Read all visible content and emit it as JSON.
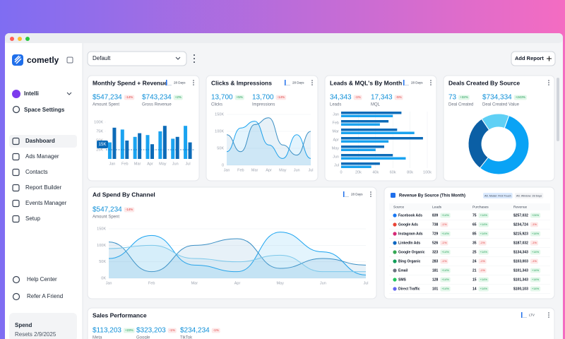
{
  "sidebar": {
    "brand": "cometly",
    "workspace": "Intelli",
    "space_settings": "Space Settings",
    "nav": [
      "Dashboard",
      "Ads Manager",
      "Contacts",
      "Report Builder",
      "Events Manager",
      "Setup"
    ],
    "footer_links": [
      "Help Center",
      "Refer A Friend"
    ],
    "plan": {
      "title": "Spend",
      "resets": "Resets 2/9/2025"
    }
  },
  "toolbar": {
    "dashboard_select": "Default",
    "add_report": "Add Report"
  },
  "monthly": {
    "title": "Monthly Spend + Revenue",
    "badge": "28 Days",
    "metrics": [
      {
        "value": "$547,234",
        "change": "-14%",
        "label": "Amount Spent"
      },
      {
        "value": "$743,234",
        "change": "+2%",
        "label": "Gross Revenue"
      }
    ],
    "chart": {
      "categories": [
        "Jan",
        "Feb",
        "Mar",
        "Apr",
        "May",
        "Jun",
        "Jul"
      ],
      "ylim": [
        0,
        100000
      ],
      "yticks": [
        {
          "value": 100000,
          "label": "100K"
        },
        {
          "value": 75000,
          "label": "75K"
        },
        {
          "value": 50000,
          "label": "50K"
        },
        {
          "value": 25000,
          "label": "25K"
        }
      ],
      "annotation": "15K",
      "series": [
        {
          "color": "#1aa3f0",
          "values": [
            45000,
            80000,
            60000,
            65000,
            75000,
            55000,
            90000
          ]
        },
        {
          "color": "#0d6bb8",
          "values": [
            85000,
            50000,
            70000,
            40000,
            90000,
            60000,
            45000
          ]
        }
      ]
    }
  },
  "clicks": {
    "title": "Clicks & Impressions",
    "badge": "28 Days",
    "metrics": [
      {
        "value": "13,700",
        "change": "+5%",
        "label": "Clicks"
      },
      {
        "value": "13,700",
        "change": "-14%",
        "label": "Impressions"
      }
    ],
    "chart": {
      "categories": [
        "Jan",
        "Feb",
        "Mar",
        "Apr",
        "May",
        "Jun",
        "Jul"
      ],
      "ylim": [
        0,
        150000
      ],
      "yticks": [
        {
          "value": 150000,
          "label": "150K"
        },
        {
          "value": 100000,
          "label": "100K"
        },
        {
          "value": 50000,
          "label": "50K"
        },
        0
      ],
      "series": [
        {
          "color": "#1aa3f0",
          "values": [
            40000,
            110000,
            130000,
            60000,
            20000,
            90000,
            20000
          ]
        },
        {
          "color": "#3b8fc4",
          "values": [
            90000,
            40000,
            120000,
            140000,
            60000,
            30000,
            100000
          ]
        }
      ]
    }
  },
  "leads": {
    "title": "Leads & MQL's By Month",
    "badge": "28 Days",
    "metrics": [
      {
        "value": "34,343",
        "change": "-1%",
        "label": "Leads"
      },
      {
        "value": "17,343",
        "change": "-5%",
        "label": "MQL"
      }
    ],
    "chart": {
      "categories": [
        "Jan",
        "Feb",
        "Mar",
        "Apr",
        "May",
        "Jun",
        "Jul"
      ],
      "xlim": [
        0,
        100000
      ],
      "xticks": [
        0,
        {
          "value": 20000,
          "label": "20k"
        },
        {
          "value": 40000,
          "label": "40k"
        },
        {
          "value": 60000,
          "label": "60k"
        },
        {
          "value": 80000,
          "label": "80k"
        },
        {
          "value": 100000,
          "label": "100k"
        }
      ],
      "series": [
        {
          "color": "#0d6bb8",
          "values": [
            70000,
            55000,
            65000,
            95000,
            50000,
            60000,
            45000
          ]
        },
        {
          "color": "#1aa3f0",
          "values": [
            60000,
            45000,
            85000,
            55000,
            40000,
            75000,
            35000
          ]
        }
      ]
    }
  },
  "deals": {
    "title": "Deals Created By Source",
    "metrics": [
      {
        "value": "73",
        "change": "+32%",
        "label": "Deal Created"
      },
      {
        "value": "$734,334",
        "change": "+243%",
        "label": "Deal Created Value"
      }
    ],
    "chart": {
      "values": [
        55,
        30,
        15
      ],
      "colors": [
        "#0aa3f5",
        "#0b5fa5",
        "#5fd0f5"
      ]
    }
  },
  "ad_spend": {
    "title": "Ad Spend By Channel",
    "badge": "28 Days",
    "metrics": [
      {
        "value": "$547,234",
        "change": "-14%",
        "label": "Amount Spent"
      }
    ],
    "chart": {
      "categories": [
        "Jan",
        "Feb",
        "Mar",
        "Apr",
        "May",
        "Jun",
        "Jul"
      ],
      "ylim": [
        0,
        150000
      ],
      "yticks": [
        {
          "value": 150000,
          "label": "150K"
        },
        {
          "value": 100000,
          "label": "100K"
        },
        {
          "value": 50000,
          "label": "50K"
        },
        {
          "value": 0,
          "label": "0K"
        }
      ],
      "series": [
        {
          "color": "#1aa3f0",
          "values": [
            60000,
            130000,
            40000,
            20000,
            140000,
            80000,
            10000
          ]
        },
        {
          "color": "#3b8fc4",
          "values": [
            110000,
            20000,
            100000,
            120000,
            30000,
            60000,
            40000
          ]
        },
        {
          "color": "#7cc8ea",
          "values": [
            90000,
            100000,
            60000,
            50000,
            70000,
            20000,
            20000
          ]
        }
      ]
    }
  },
  "revenue_table": {
    "title": "Revenue By Source (This Month)",
    "chips": [
      "Att. Model: First Touch",
      "Att. Window: 28 Days"
    ],
    "columns": [
      "Source",
      "Leads",
      "Purchases",
      "Revenue"
    ],
    "rows": [
      [
        "Facebook Ads",
        "839",
        "+14%",
        "75",
        "+14%",
        "$257,032",
        "+24%"
      ],
      [
        "Google Ads",
        "738",
        "-1%",
        "65",
        "+14%",
        "$234,724",
        "-1%"
      ],
      [
        "Instagram Ads",
        "729",
        "+14%",
        "85",
        "+14%",
        "$215,923",
        "+14%"
      ],
      [
        "LinkedIn Ads",
        "526",
        "-1%",
        "35",
        "-1%",
        "$187,032",
        "-1%"
      ],
      [
        "Google Organic",
        "323",
        "+14%",
        "25",
        "+14%",
        "$134,343",
        "+14%"
      ],
      [
        "Bing Organic",
        "283",
        "-1%",
        "24",
        "-1%",
        "$103,003",
        "-1%"
      ],
      [
        "Email",
        "181",
        "+14%",
        "21",
        "-1%",
        "$101,343",
        "+14%"
      ],
      [
        "SMS",
        "128",
        "+14%",
        "15",
        "+14%",
        "$101,343",
        "+14%"
      ],
      [
        "Direct Traffic",
        "101",
        "+14%",
        "14",
        "+14%",
        "$100,103",
        "+14%"
      ]
    ]
  },
  "sales": {
    "title": "Sales Performance",
    "badge": "LTV",
    "metrics": [
      {
        "value": "$113,203",
        "change": "+23%",
        "label": "Meta"
      },
      {
        "value": "$323,203",
        "change": "-1%",
        "label": "Google"
      },
      {
        "value": "$234,234",
        "change": "-1%",
        "label": "TikTok"
      }
    ]
  }
}
